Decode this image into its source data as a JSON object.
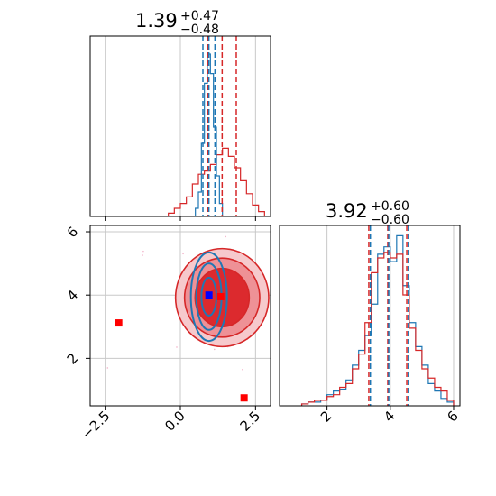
{
  "chart_data": {
    "type": "corner",
    "colors": {
      "series_a": "#d62728",
      "series_b": "#1f77b4",
      "marker_b": "#0000ff",
      "grid": "#c8c8c8"
    },
    "parameters": [
      {
        "median": "1.39",
        "plus": "+0.47",
        "minus": "−0.48",
        "range": [
          -3.0,
          3.0
        ]
      },
      {
        "median": "3.92",
        "plus": "+0.60",
        "minus": "−0.60",
        "range": [
          0.5,
          6.2
        ]
      }
    ],
    "panels": {
      "top_left": {
        "type": "histogram",
        "x_range": [
          -3.0,
          3.0
        ],
        "gridlines_x": [
          -2.5,
          0.0,
          2.5
        ],
        "red_quantile_lines": [
          0.91,
          1.39,
          1.86
        ],
        "blue_quantile_lines": [
          0.75,
          0.95,
          1.15
        ],
        "red_hist": [
          [
            -0.3,
            0.02
          ],
          [
            -0.1,
            0.05
          ],
          [
            0.1,
            0.08
          ],
          [
            0.3,
            0.12
          ],
          [
            0.5,
            0.2
          ],
          [
            0.7,
            0.26
          ],
          [
            0.9,
            0.28
          ],
          [
            1.1,
            0.32
          ],
          [
            1.3,
            0.38
          ],
          [
            1.5,
            0.42
          ],
          [
            1.7,
            0.37
          ],
          [
            1.9,
            0.3
          ],
          [
            2.1,
            0.22
          ],
          [
            2.3,
            0.14
          ],
          [
            2.5,
            0.07
          ],
          [
            2.7,
            0.03
          ]
        ],
        "blue_hist": [
          [
            0.55,
            0.05
          ],
          [
            0.65,
            0.15
          ],
          [
            0.75,
            0.45
          ],
          [
            0.85,
            0.82
          ],
          [
            0.95,
            1.0
          ],
          [
            1.05,
            0.88
          ],
          [
            1.15,
            0.55
          ],
          [
            1.25,
            0.25
          ],
          [
            1.35,
            0.08
          ]
        ]
      },
      "bottom_left": {
        "type": "2d_contour",
        "x_range": [
          -3.0,
          3.0
        ],
        "y_range": [
          0.5,
          6.2
        ],
        "x_ticks": [
          "−2.5",
          "0.0",
          "2.5"
        ],
        "x_tick_values": [
          -2.5,
          0.0,
          2.5
        ],
        "y_ticks": [
          "2",
          "4",
          "6"
        ],
        "y_tick_values": [
          2,
          4,
          6
        ],
        "red_center": [
          1.39,
          3.92
        ],
        "blue_center": [
          0.95,
          3.95
        ],
        "red_markers": [
          [
            -2.05,
            3.12
          ],
          [
            1.34,
            3.95
          ],
          [
            2.12,
            0.75
          ]
        ],
        "blue_markers": [
          [
            0.95,
            4.0
          ]
        ]
      },
      "bottom_right": {
        "type": "histogram",
        "x_range": [
          0.5,
          6.2
        ],
        "x_ticks": [
          "2",
          "4",
          "6"
        ],
        "x_tick_values": [
          2,
          4,
          6
        ],
        "red_quantile_lines": [
          3.32,
          3.92,
          4.52
        ],
        "blue_quantile_lines": [
          3.37,
          3.95,
          4.57
        ],
        "red_hist": [
          [
            1.3,
            0.01
          ],
          [
            1.5,
            0.02
          ],
          [
            1.7,
            0.03
          ],
          [
            1.9,
            0.03
          ],
          [
            2.1,
            0.05
          ],
          [
            2.3,
            0.06
          ],
          [
            2.5,
            0.1
          ],
          [
            2.7,
            0.12
          ],
          [
            2.9,
            0.2
          ],
          [
            3.1,
            0.28
          ],
          [
            3.3,
            0.45
          ],
          [
            3.5,
            0.72
          ],
          [
            3.7,
            0.8
          ],
          [
            3.9,
            0.83
          ],
          [
            4.1,
            0.8
          ],
          [
            4.3,
            0.82
          ],
          [
            4.5,
            0.6
          ],
          [
            4.7,
            0.42
          ],
          [
            4.9,
            0.3
          ],
          [
            5.1,
            0.2
          ],
          [
            5.3,
            0.15
          ],
          [
            5.5,
            0.1
          ],
          [
            5.7,
            0.08
          ],
          [
            5.9,
            0.03
          ]
        ],
        "blue_hist": [
          [
            1.3,
            0.01
          ],
          [
            1.5,
            0.02
          ],
          [
            1.7,
            0.02
          ],
          [
            1.9,
            0.03
          ],
          [
            2.1,
            0.06
          ],
          [
            2.3,
            0.08
          ],
          [
            2.5,
            0.09
          ],
          [
            2.7,
            0.14
          ],
          [
            2.9,
            0.22
          ],
          [
            3.1,
            0.3
          ],
          [
            3.3,
            0.38
          ],
          [
            3.5,
            0.55
          ],
          [
            3.7,
            0.82
          ],
          [
            3.9,
            0.86
          ],
          [
            4.1,
            0.78
          ],
          [
            4.3,
            0.92
          ],
          [
            4.5,
            0.65
          ],
          [
            4.7,
            0.45
          ],
          [
            4.9,
            0.32
          ],
          [
            5.1,
            0.22
          ],
          [
            5.3,
            0.12
          ],
          [
            5.5,
            0.08
          ],
          [
            5.7,
            0.04
          ],
          [
            5.9,
            0.02
          ]
        ]
      }
    }
  }
}
